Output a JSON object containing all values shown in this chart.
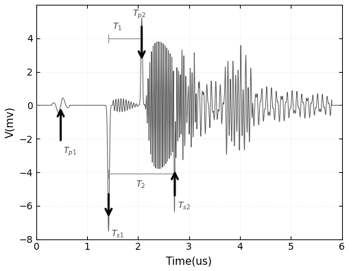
{
  "xlabel": "Time(us)",
  "ylabel": "V(mv)",
  "xlim": [
    0,
    6
  ],
  "ylim": [
    -8,
    6
  ],
  "yticks": [
    -8,
    -6,
    -4,
    -2,
    0,
    2,
    4
  ],
  "xticks": [
    0,
    1,
    2,
    3,
    4,
    5,
    6
  ],
  "line_color": "#555555",
  "background_color": "#ffffff",
  "bracket_color": "#909090",
  "tp1_x": 0.48,
  "ts1_x": 1.42,
  "tp2_x": 2.07,
  "ts2_x": 2.72,
  "T1_bracket_y": 4.0,
  "T1_x1": 1.42,
  "T1_x2": 2.07,
  "T2_bracket_y": -4.1,
  "T2_x1": 1.42,
  "T2_x2": 2.72
}
